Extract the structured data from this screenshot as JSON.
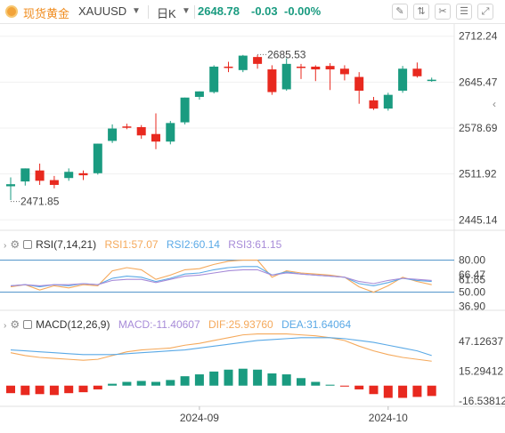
{
  "header": {
    "instrument_name": "现货黄金",
    "symbol": "XAUUSD",
    "period": "日K",
    "last_price": "2648.78",
    "change": "-0.03",
    "change_pct": "-0.00%"
  },
  "tools": [
    "draw-tool-icon",
    "compare-icon",
    "indicator-icon",
    "settings-icon",
    "fullscreen-icon"
  ],
  "colors": {
    "up": "#1a9b80",
    "down": "#e8291f",
    "rsi1": "#f5a95b",
    "rsi2": "#5aa9e6",
    "rsi3": "#a78bd8",
    "macd_dif": "#f5a95b",
    "macd_dea": "#5aa9e6"
  },
  "chart_data": [
    {
      "type": "candlestick",
      "y_ticks": [
        "2712.24",
        "2645.47",
        "2578.69",
        "2511.92",
        "2445.14"
      ],
      "y_tick_values": [
        2712.24,
        2645.47,
        2578.69,
        2511.92,
        2445.14
      ],
      "ylim": [
        2430,
        2730
      ],
      "x_ticks": [
        {
          "label": "2024-09",
          "index": 13
        },
        {
          "label": "2024-10",
          "index": 26
        }
      ],
      "annotations": [
        {
          "label": "2685.53",
          "index": 17,
          "value": 2685.53
        },
        {
          "label": "2471.85",
          "index": 0,
          "value": 2471.85
        }
      ],
      "candles": [
        {
          "o": 2494,
          "h": 2507,
          "c": 2497,
          "l": 2474
        },
        {
          "o": 2501,
          "h": 2520,
          "c": 2520,
          "l": 2495
        },
        {
          "o": 2517,
          "h": 2527,
          "c": 2502,
          "l": 2496
        },
        {
          "o": 2503,
          "h": 2509,
          "c": 2496,
          "l": 2491
        },
        {
          "o": 2506,
          "h": 2520,
          "c": 2515,
          "l": 2502
        },
        {
          "o": 2513,
          "h": 2517,
          "c": 2510,
          "l": 2503
        },
        {
          "o": 2513,
          "h": 2556,
          "c": 2556,
          "l": 2511
        },
        {
          "o": 2560,
          "h": 2584,
          "c": 2578,
          "l": 2557
        },
        {
          "o": 2581,
          "h": 2585,
          "c": 2580,
          "l": 2577
        },
        {
          "o": 2580,
          "h": 2583,
          "c": 2568,
          "l": 2563
        },
        {
          "o": 2570,
          "h": 2600,
          "c": 2559,
          "l": 2548
        },
        {
          "o": 2559,
          "h": 2589,
          "c": 2586,
          "l": 2555
        },
        {
          "o": 2587,
          "h": 2623,
          "c": 2623,
          "l": 2584
        },
        {
          "o": 2624,
          "h": 2632,
          "c": 2632,
          "l": 2620
        },
        {
          "o": 2631,
          "h": 2670,
          "c": 2668,
          "l": 2629
        },
        {
          "o": 2668,
          "h": 2675,
          "c": 2667,
          "l": 2660
        },
        {
          "o": 2663,
          "h": 2685,
          "c": 2684,
          "l": 2660
        },
        {
          "o": 2682,
          "h": 2685,
          "c": 2672,
          "l": 2665
        },
        {
          "o": 2664,
          "h": 2670,
          "c": 2631,
          "l": 2627
        },
        {
          "o": 2635,
          "h": 2680,
          "c": 2672,
          "l": 2633
        },
        {
          "o": 2668,
          "h": 2672,
          "c": 2667,
          "l": 2650
        },
        {
          "o": 2668,
          "h": 2670,
          "c": 2664,
          "l": 2647
        },
        {
          "o": 2669,
          "h": 2673,
          "c": 2664,
          "l": 2634
        },
        {
          "o": 2665,
          "h": 2670,
          "c": 2657,
          "l": 2648
        },
        {
          "o": 2653,
          "h": 2660,
          "c": 2633,
          "l": 2614
        },
        {
          "o": 2619,
          "h": 2624,
          "c": 2607,
          "l": 2605
        },
        {
          "o": 2607,
          "h": 2630,
          "c": 2627,
          "l": 2604
        },
        {
          "o": 2633,
          "h": 2669,
          "c": 2665,
          "l": 2630
        },
        {
          "o": 2665,
          "h": 2674,
          "c": 2654,
          "l": 2652
        },
        {
          "o": 2649,
          "h": 2652,
          "c": 2649,
          "l": 2646
        }
      ]
    },
    {
      "type": "line",
      "indicator": "RSI(7,14,21)",
      "legend": {
        "rsi1": "RSI1:57.07",
        "rsi2": "RSI2:60.14",
        "rsi3": "RSI3:61.15"
      },
      "y_ticks": [
        "80.00",
        "66.47",
        "61.65",
        "50.00",
        "36.90"
      ],
      "y_tick_values": [
        80.0,
        66.47,
        61.65,
        50.0,
        36.9
      ],
      "reference_lines": [
        80,
        50
      ],
      "ylim": [
        33,
        83
      ],
      "series": [
        {
          "name": "RSI1",
          "values": [
            55,
            57,
            52,
            56,
            54,
            57,
            56,
            70,
            73,
            71,
            62,
            66,
            71,
            72,
            76,
            79,
            80,
            80,
            64,
            70,
            68,
            67,
            66,
            64,
            55,
            50,
            56,
            64,
            60,
            57
          ]
        },
        {
          "name": "RSI2",
          "values": [
            56,
            57,
            55,
            57,
            56,
            58,
            57,
            63,
            65,
            64,
            60,
            63,
            67,
            68,
            71,
            73,
            74,
            74,
            66,
            69,
            67,
            66,
            65,
            64,
            58,
            56,
            59,
            63,
            61,
            60
          ]
        },
        {
          "name": "RSI3",
          "values": [
            56,
            57,
            56,
            57,
            57,
            58,
            57,
            61,
            62,
            62,
            59,
            62,
            65,
            66,
            68,
            70,
            71,
            71,
            66,
            68,
            67,
            66,
            65,
            64,
            60,
            58,
            61,
            63,
            62,
            61
          ]
        }
      ]
    },
    {
      "type": "bar",
      "indicator": "MACD(12,26,9)",
      "legend": {
        "macd": "MACD:-11.40607",
        "dif": "DIF:25.93760",
        "dea": "DEA:31.64064"
      },
      "y_ticks": [
        "47.12637",
        "15.29412",
        "-16.53812"
      ],
      "y_tick_values": [
        47.12637,
        15.29412,
        -16.53812
      ],
      "ylim": [
        -22,
        65
      ],
      "macd_values": [
        -8,
        -10,
        -9,
        -10,
        -8,
        -7,
        -4,
        2,
        4,
        5,
        4,
        6,
        10,
        12,
        15,
        17,
        18,
        17,
        13,
        12,
        8,
        4,
        1,
        -1,
        -4,
        -9,
        -13,
        -13,
        -12,
        -11
      ],
      "series": [
        {
          "name": "DIF",
          "values": [
            35,
            32,
            30,
            29,
            28,
            27,
            28,
            32,
            36,
            38,
            39,
            40,
            43,
            45,
            48,
            51,
            54,
            55,
            55,
            55,
            54,
            53,
            51,
            48,
            42,
            37,
            33,
            30,
            28,
            26
          ]
        },
        {
          "name": "DEA",
          "values": [
            38,
            37,
            36,
            35,
            34,
            33,
            33,
            33,
            34,
            35,
            36,
            37,
            38,
            40,
            42,
            44,
            46,
            48,
            49,
            50,
            51,
            51,
            51,
            50,
            48,
            46,
            43,
            40,
            37,
            32
          ]
        }
      ]
    }
  ]
}
